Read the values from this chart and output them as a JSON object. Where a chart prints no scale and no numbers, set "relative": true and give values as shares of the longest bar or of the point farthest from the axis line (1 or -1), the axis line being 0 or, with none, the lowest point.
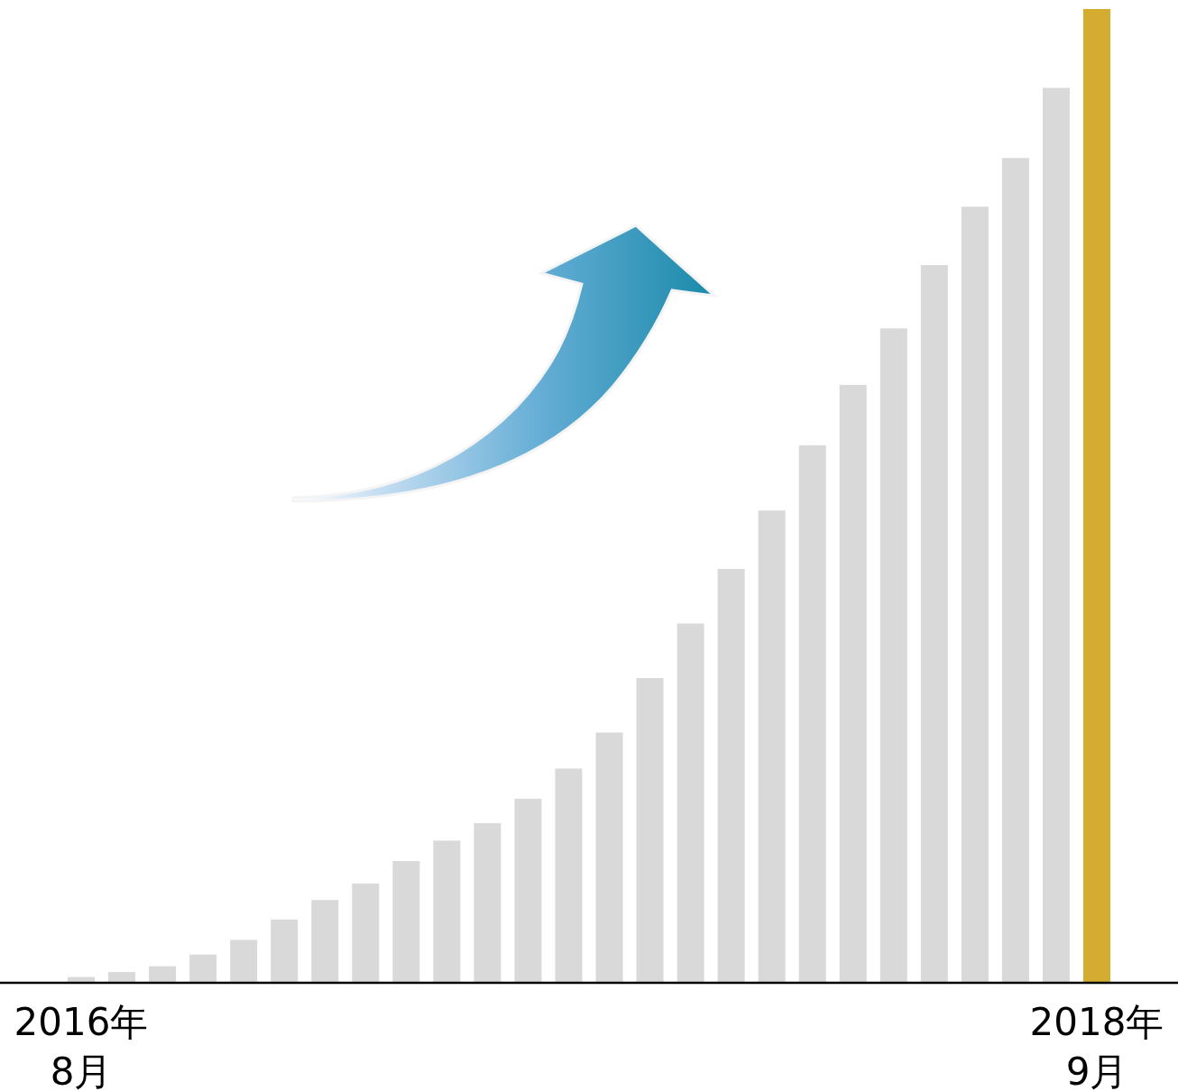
{
  "chart_data": {
    "type": "bar",
    "relative": true,
    "categories": [
      "2016年\n8月",
      null,
      null,
      null,
      null,
      null,
      null,
      null,
      null,
      null,
      null,
      null,
      null,
      null,
      null,
      null,
      null,
      null,
      null,
      null,
      null,
      null,
      null,
      null,
      null,
      "2018年\n9月"
    ],
    "values": [
      0.006,
      0.011,
      0.017,
      0.029,
      0.044,
      0.065,
      0.085,
      0.102,
      0.125,
      0.146,
      0.164,
      0.189,
      0.22,
      0.257,
      0.313,
      0.369,
      0.425,
      0.485,
      0.552,
      0.614,
      0.672,
      0.737,
      0.797,
      0.847,
      0.919,
      1
    ],
    "colors": [
      "#d9d9d9",
      "#d9d9d9",
      "#d9d9d9",
      "#d9d9d9",
      "#d9d9d9",
      "#d9d9d9",
      "#d9d9d9",
      "#d9d9d9",
      "#d9d9d9",
      "#d9d9d9",
      "#d9d9d9",
      "#d9d9d9",
      "#d9d9d9",
      "#d9d9d9",
      "#d9d9d9",
      "#d9d9d9",
      "#d9d9d9",
      "#d9d9d9",
      "#d9d9d9",
      "#d9d9d9",
      "#d9d9d9",
      "#d9d9d9",
      "#d9d9d9",
      "#d9d9d9",
      "#d9d9d9",
      "#d4ac2f"
    ]
  }
}
